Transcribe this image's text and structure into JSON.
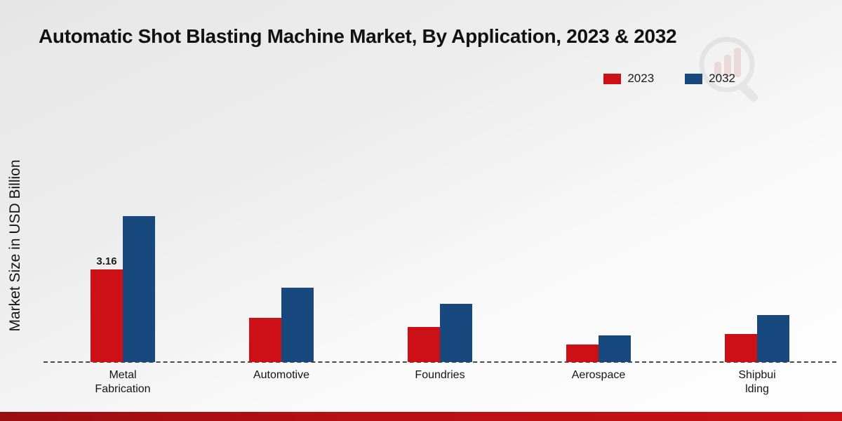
{
  "chart_data": {
    "type": "bar",
    "title": "Automatic Shot Blasting Machine Market, By Application, 2023 & 2032",
    "ylabel": "Market Size in USD Billion",
    "xlabel": "",
    "categories": [
      {
        "label": "Metal Fabrication",
        "lines": [
          "Metal",
          "Fabrication"
        ]
      },
      {
        "label": "Automotive",
        "lines": [
          "Automotive"
        ]
      },
      {
        "label": "Foundries",
        "lines": [
          "Foundries"
        ]
      },
      {
        "label": "Aerospace",
        "lines": [
          "Aerospace"
        ]
      },
      {
        "label": "Shipbuilding",
        "lines": [
          "Shipbui",
          "lding"
        ]
      }
    ],
    "series": [
      {
        "name": "2023",
        "color": "#cc1016",
        "values": [
          3.16,
          1.5,
          1.2,
          0.6,
          0.95
        ]
      },
      {
        "name": "2032",
        "color": "#17497f",
        "values": [
          5.0,
          2.55,
          2.0,
          0.92,
          1.6
        ]
      }
    ],
    "ylim": [
      0,
      6
    ],
    "annotations": [
      {
        "category_index": 0,
        "series_index": 0,
        "text": "3.16"
      }
    ],
    "grid": false,
    "baseline_style": "dashed",
    "legend_position": "top-right",
    "accent_strip_color": "#b81013"
  }
}
